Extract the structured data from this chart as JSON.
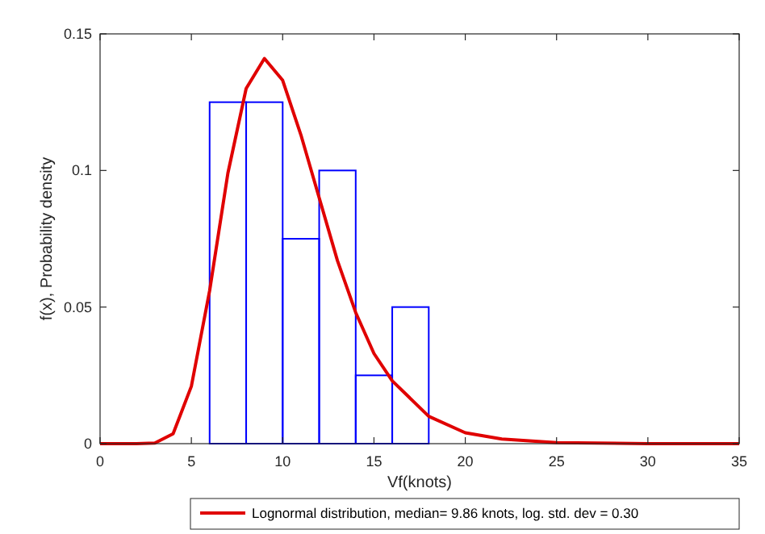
{
  "chart_data": {
    "type": "histogram",
    "xlabel": "Vf(knots)",
    "ylabel": "f(x), Probability density",
    "xlim": [
      0,
      35
    ],
    "xticks": [
      0,
      5,
      10,
      15,
      20,
      25,
      30,
      35
    ],
    "ylim": [
      0,
      0.15
    ],
    "yticks": [
      0,
      0.05,
      0.1,
      0.15
    ],
    "legend": "bottom",
    "series": [
      {
        "color": "#0000ff",
        "bins": [
          6,
          8,
          10,
          12,
          14,
          16,
          18
        ],
        "values": [
          0.125,
          0.125,
          0.075,
          0.1,
          0.025,
          0.05
        ]
      },
      {
        "type": "line",
        "name": "Lognormal distribution, median= 9.86 knots, log. std. dev = 0.30",
        "color": "#e00000",
        "line_style": "solid",
        "x": [
          0,
          2,
          3,
          4,
          5,
          6,
          7,
          8,
          9,
          10,
          11,
          12,
          13,
          14,
          15,
          16,
          18,
          20,
          22,
          25,
          30,
          35
        ],
        "values": [
          0,
          0,
          0.0002,
          0.0036,
          0.021,
          0.056,
          0.099,
          0.13,
          0.141,
          0.133,
          0.113,
          0.09,
          0.067,
          0.048,
          0.033,
          0.023,
          0.01,
          0.004,
          0.0017,
          0.0004,
          0,
          0
        ]
      }
    ]
  }
}
